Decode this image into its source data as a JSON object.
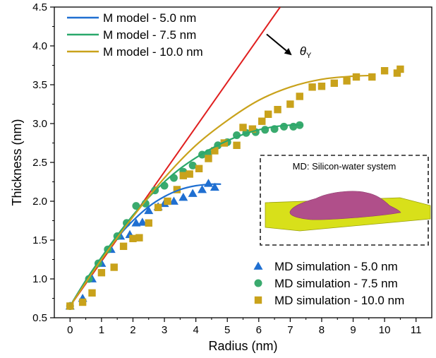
{
  "chart_data": {
    "type": "scatter",
    "xlabel": "Radius (nm)",
    "ylabel": "Thickness (nm)",
    "xlim": [
      -0.5,
      11.5
    ],
    "ylim": [
      0.5,
      4.5
    ],
    "x_ticks": [
      "0",
      "1",
      "2",
      "3",
      "4",
      "5",
      "6",
      "7",
      "8",
      "9",
      "10",
      "11"
    ],
    "y_ticks": [
      "0.5",
      "1.0",
      "1.5",
      "2.0",
      "2.5",
      "3.0",
      "3.5",
      "4.0",
      "4.5"
    ],
    "x_tick_values": [
      0,
      1,
      2,
      3,
      4,
      5,
      6,
      7,
      8,
      9,
      10,
      11
    ],
    "y_tick_values": [
      0.5,
      1.0,
      1.5,
      2.0,
      2.5,
      3.0,
      3.5,
      4.0,
      4.5
    ],
    "grid": false,
    "model_lines": [
      {
        "name": "M model - 5.0 nm",
        "color": "#1f6fd1",
        "x": [
          0,
          0.5,
          1,
          1.5,
          2,
          2.5,
          3,
          3.5,
          4,
          4.5,
          4.8
        ],
        "y": [
          0.65,
          0.98,
          1.27,
          1.53,
          1.75,
          1.93,
          2.06,
          2.15,
          2.2,
          2.22,
          2.22
        ]
      },
      {
        "name": "M model - 7.5 nm",
        "color": "#2aa86b",
        "x": [
          0,
          0.5,
          1,
          1.5,
          2,
          2.5,
          3,
          3.5,
          4,
          4.5,
          5,
          5.5,
          6,
          6.5,
          7,
          7.4
        ],
        "y": [
          0.65,
          0.98,
          1.28,
          1.56,
          1.82,
          2.05,
          2.25,
          2.42,
          2.56,
          2.68,
          2.78,
          2.86,
          2.92,
          2.96,
          2.98,
          2.98
        ]
      },
      {
        "name": "M model - 10.0 nm",
        "color": "#c9a21b",
        "x": [
          0,
          1,
          2,
          3,
          4,
          5,
          6,
          7,
          8,
          9,
          9.7
        ],
        "y": [
          0.65,
          1.25,
          1.8,
          2.3,
          2.72,
          3.04,
          3.3,
          3.47,
          3.57,
          3.61,
          3.62
        ]
      }
    ],
    "theta_line": {
      "color": "#e01f1f",
      "x": [
        0,
        6.68
      ],
      "y": [
        0.65,
        4.5
      ]
    },
    "scatter_series": [
      {
        "name": "MD simulation - 5.0 nm",
        "marker": "triangle",
        "color": "#1f6fd1",
        "x": [
          0,
          0.4,
          0.7,
          1.0,
          1.3,
          1.6,
          1.9,
          2.1,
          2.3,
          2.5,
          2.8,
          3.0,
          3.3,
          3.6,
          3.9,
          4.2,
          4.4,
          4.6
        ],
        "y": [
          0.65,
          0.75,
          1.0,
          1.2,
          1.38,
          1.55,
          1.57,
          1.72,
          1.73,
          1.88,
          1.93,
          1.97,
          2.0,
          2.05,
          2.1,
          2.15,
          2.23,
          2.18
        ]
      },
      {
        "name": "MD simulation - 7.5 nm",
        "marker": "circle",
        "color": "#3aaa6e",
        "x": [
          0,
          0.6,
          0.9,
          1.2,
          1.5,
          1.8,
          2.1,
          2.4,
          2.7,
          3.0,
          3.3,
          3.6,
          3.9,
          4.2,
          4.4,
          4.7,
          5.0,
          5.3,
          5.6,
          5.9,
          6.2,
          6.5,
          6.8,
          7.1,
          7.3
        ],
        "y": [
          0.65,
          1.0,
          1.2,
          1.38,
          1.55,
          1.72,
          1.94,
          1.97,
          2.14,
          2.2,
          2.3,
          2.38,
          2.46,
          2.6,
          2.62,
          2.72,
          2.76,
          2.85,
          2.88,
          2.89,
          2.92,
          2.93,
          2.96,
          2.96,
          2.98
        ]
      },
      {
        "name": "MD simulation - 10.0 nm",
        "marker": "square",
        "color": "#c9a21b",
        "x": [
          0,
          0.4,
          0.7,
          1.0,
          1.4,
          1.7,
          2.0,
          2.2,
          2.5,
          2.8,
          3.1,
          3.4,
          3.6,
          3.8,
          4.1,
          4.4,
          4.6,
          4.9,
          5.3,
          5.5,
          5.8,
          6.1,
          6.3,
          6.6,
          7.0,
          7.3,
          7.7,
          8.0,
          8.4,
          8.8,
          9.1,
          9.6,
          10.0,
          10.4,
          10.5
        ],
        "y": [
          0.65,
          0.7,
          0.82,
          1.08,
          1.15,
          1.42,
          1.52,
          1.53,
          1.72,
          1.92,
          2.0,
          2.15,
          2.33,
          2.35,
          2.42,
          2.55,
          2.65,
          2.75,
          2.72,
          2.95,
          2.93,
          3.03,
          3.12,
          3.18,
          3.25,
          3.35,
          3.47,
          3.48,
          3.52,
          3.55,
          3.6,
          3.6,
          3.68,
          3.65,
          3.7
        ]
      }
    ],
    "annotation": {
      "text": "θ",
      "subscript": "Y",
      "arrow_from": [
        6.25,
        4.15
      ],
      "arrow_to": [
        7.05,
        3.88
      ]
    },
    "inset": {
      "title": "MD: Silicon-water system",
      "substrate_color": "#d8e01a",
      "droplet_color": "#b04f8a"
    },
    "legend_top": {
      "position": "top-left"
    },
    "legend_bottom": {
      "position": "bottom-right"
    }
  }
}
